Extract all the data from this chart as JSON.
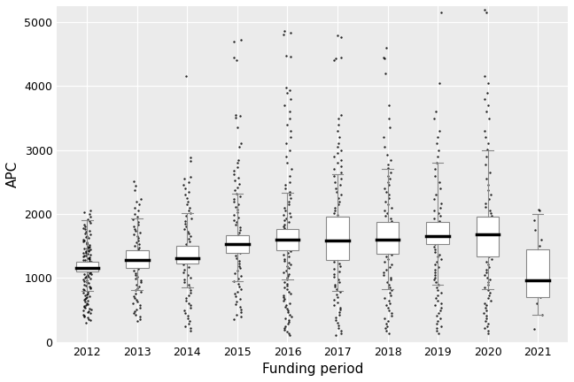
{
  "years": [
    2012,
    2013,
    2014,
    2015,
    2016,
    2017,
    2018,
    2019,
    2020,
    2021
  ],
  "box_stats": {
    "2012": {
      "q1": 1100,
      "median": 1150,
      "q3": 1260,
      "whislo": 800,
      "whishi": 1900
    },
    "2013": {
      "q1": 1155,
      "median": 1275,
      "q3": 1435,
      "whislo": 810,
      "whishi": 1930
    },
    "2014": {
      "q1": 1230,
      "median": 1305,
      "q3": 1505,
      "whislo": 850,
      "whishi": 2020
    },
    "2015": {
      "q1": 1385,
      "median": 1525,
      "q3": 1665,
      "whislo": 950,
      "whishi": 2320
    },
    "2016": {
      "q1": 1435,
      "median": 1600,
      "q3": 1770,
      "whislo": 970,
      "whishi": 2330
    },
    "2017": {
      "q1": 1275,
      "median": 1585,
      "q3": 1960,
      "whislo": 800,
      "whishi": 2620
    },
    "2018": {
      "q1": 1375,
      "median": 1595,
      "q3": 1875,
      "whislo": 820,
      "whishi": 2700
    },
    "2019": {
      "q1": 1535,
      "median": 1655,
      "q3": 1875,
      "whislo": 900,
      "whishi": 2800
    },
    "2020": {
      "q1": 1335,
      "median": 1685,
      "q3": 1955,
      "whislo": 830,
      "whishi": 3000
    },
    "2021": {
      "q1": 700,
      "median": 960,
      "q3": 1450,
      "whislo": 430,
      "whishi": 2000
    }
  },
  "scatter_data": {
    "2012": [
      300,
      340,
      360,
      380,
      400,
      415,
      430,
      445,
      460,
      475,
      490,
      505,
      520,
      535,
      550,
      565,
      580,
      595,
      610,
      625,
      640,
      655,
      670,
      685,
      700,
      715,
      730,
      745,
      760,
      775,
      790,
      810,
      825,
      840,
      855,
      870,
      885,
      900,
      915,
      930,
      945,
      960,
      975,
      990,
      1000,
      1015,
      1025,
      1035,
      1045,
      1055,
      1065,
      1075,
      1085,
      1095,
      1105,
      1115,
      1125,
      1135,
      1145,
      1155,
      1165,
      1175,
      1185,
      1195,
      1205,
      1215,
      1225,
      1235,
      1245,
      1255,
      1265,
      1275,
      1285,
      1295,
      1305,
      1315,
      1325,
      1335,
      1345,
      1355,
      1365,
      1375,
      1385,
      1395,
      1405,
      1415,
      1425,
      1435,
      1445,
      1455,
      1465,
      1475,
      1485,
      1495,
      1510,
      1525,
      1540,
      1555,
      1570,
      1585,
      1600,
      1620,
      1640,
      1660,
      1680,
      1700,
      1720,
      1740,
      1760,
      1780,
      1800,
      1830,
      1860,
      1890,
      1920,
      1960,
      2000,
      2030,
      2060
    ],
    "2013": [
      330,
      360,
      390,
      420,
      450,
      480,
      510,
      540,
      570,
      600,
      630,
      660,
      690,
      720,
      750,
      780,
      810,
      840,
      870,
      900,
      930,
      960,
      990,
      1020,
      1050,
      1080,
      1110,
      1140,
      1170,
      1200,
      1230,
      1260,
      1290,
      1320,
      1350,
      1380,
      1410,
      1440,
      1470,
      1500,
      1530,
      1560,
      1590,
      1620,
      1650,
      1680,
      1710,
      1740,
      1770,
      1800,
      1840,
      1880,
      1920,
      1960,
      2000,
      2060,
      2100,
      2150,
      2200,
      2240,
      2380,
      2440,
      2510
    ],
    "2014": [
      170,
      210,
      250,
      290,
      330,
      370,
      410,
      450,
      490,
      530,
      570,
      610,
      650,
      690,
      730,
      770,
      810,
      850,
      890,
      930,
      970,
      1010,
      1050,
      1090,
      1130,
      1170,
      1210,
      1250,
      1290,
      1330,
      1370,
      1410,
      1450,
      1490,
      1530,
      1570,
      1610,
      1650,
      1690,
      1730,
      1770,
      1810,
      1850,
      1890,
      1930,
      1970,
      2010,
      2050,
      2100,
      2150,
      2200,
      2250,
      2300,
      2350,
      2400,
      2450,
      2500,
      2550,
      2580,
      2830,
      2880,
      4150
    ],
    "2015": [
      350,
      390,
      430,
      470,
      510,
      550,
      590,
      630,
      670,
      710,
      750,
      790,
      830,
      870,
      910,
      950,
      990,
      1030,
      1070,
      1110,
      1150,
      1190,
      1230,
      1270,
      1310,
      1350,
      1390,
      1430,
      1470,
      1510,
      1550,
      1590,
      1630,
      1670,
      1710,
      1750,
      1790,
      1830,
      1870,
      1910,
      1950,
      1990,
      2030,
      2070,
      2110,
      2150,
      2190,
      2230,
      2270,
      2320,
      2370,
      2420,
      2470,
      2520,
      2570,
      2620,
      2680,
      2730,
      2800,
      2850,
      3050,
      3100,
      3350,
      3510,
      3530,
      3550,
      4400,
      4450,
      4700,
      4720
    ],
    "2016": [
      100,
      130,
      160,
      190,
      220,
      250,
      280,
      310,
      340,
      370,
      400,
      430,
      460,
      490,
      520,
      550,
      580,
      610,
      640,
      670,
      700,
      730,
      760,
      790,
      820,
      850,
      880,
      910,
      940,
      970,
      1000,
      1030,
      1060,
      1090,
      1120,
      1150,
      1180,
      1210,
      1240,
      1270,
      1300,
      1330,
      1360,
      1390,
      1420,
      1450,
      1480,
      1510,
      1540,
      1570,
      1600,
      1630,
      1660,
      1690,
      1720,
      1750,
      1780,
      1810,
      1840,
      1870,
      1900,
      1930,
      1960,
      1990,
      2020,
      2060,
      2100,
      2150,
      2200,
      2250,
      2300,
      2350,
      2400,
      2450,
      2500,
      2600,
      2700,
      2800,
      2900,
      3000,
      3100,
      3200,
      3300,
      3400,
      3500,
      3600,
      3700,
      3800,
      3900,
      3940,
      3980,
      4460,
      4480,
      4800,
      4830,
      4860
    ],
    "2017": [
      100,
      140,
      180,
      220,
      260,
      300,
      340,
      380,
      420,
      460,
      500,
      540,
      580,
      620,
      660,
      700,
      740,
      780,
      820,
      860,
      900,
      940,
      980,
      1020,
      1060,
      1100,
      1140,
      1180,
      1220,
      1260,
      1300,
      1340,
      1380,
      1420,
      1460,
      1500,
      1540,
      1580,
      1620,
      1660,
      1700,
      1740,
      1780,
      1820,
      1860,
      1900,
      1940,
      1980,
      2020,
      2060,
      2100,
      2150,
      2200,
      2250,
      2300,
      2350,
      2400,
      2450,
      2500,
      2550,
      2600,
      2650,
      2700,
      2750,
      2800,
      2850,
      2900,
      2950,
      3000,
      3050,
      3100,
      3200,
      3300,
      3400,
      3500,
      3550,
      4400,
      4430,
      4450,
      4760,
      4790
    ],
    "2018": [
      130,
      170,
      210,
      250,
      290,
      330,
      370,
      410,
      450,
      490,
      530,
      570,
      610,
      650,
      690,
      730,
      770,
      810,
      850,
      890,
      930,
      970,
      1010,
      1050,
      1090,
      1130,
      1170,
      1210,
      1250,
      1290,
      1330,
      1370,
      1410,
      1450,
      1490,
      1530,
      1570,
      1610,
      1650,
      1690,
      1730,
      1770,
      1810,
      1850,
      1890,
      1930,
      1970,
      2010,
      2060,
      2100,
      2150,
      2200,
      2250,
      2300,
      2350,
      2400,
      2450,
      2500,
      2550,
      2600,
      2650,
      2720,
      2780,
      2850,
      2920,
      3050,
      3200,
      3350,
      3500,
      3700,
      4200,
      4430,
      4450,
      4600
    ],
    "2019": [
      130,
      170,
      210,
      250,
      290,
      330,
      370,
      410,
      450,
      490,
      530,
      570,
      610,
      650,
      690,
      730,
      770,
      810,
      850,
      890,
      930,
      970,
      1010,
      1050,
      1090,
      1130,
      1170,
      1210,
      1250,
      1290,
      1330,
      1370,
      1410,
      1450,
      1490,
      1530,
      1570,
      1610,
      1650,
      1690,
      1730,
      1770,
      1810,
      1850,
      1890,
      1930,
      1970,
      2010,
      2050,
      2100,
      2160,
      2230,
      2300,
      2400,
      2500,
      2600,
      2700,
      2800,
      2900,
      3000,
      3100,
      3200,
      3300,
      3500,
      3600,
      4050,
      5150
    ],
    "2020": [
      130,
      170,
      210,
      250,
      290,
      330,
      370,
      410,
      450,
      490,
      530,
      570,
      610,
      650,
      690,
      730,
      770,
      810,
      850,
      890,
      930,
      970,
      1010,
      1050,
      1090,
      1130,
      1170,
      1210,
      1250,
      1290,
      1330,
      1370,
      1410,
      1450,
      1490,
      1530,
      1570,
      1610,
      1650,
      1690,
      1730,
      1770,
      1810,
      1850,
      1890,
      1930,
      1970,
      2010,
      2060,
      2110,
      2170,
      2230,
      2300,
      2380,
      2460,
      2550,
      2650,
      2780,
      2900,
      3010,
      3100,
      3200,
      3300,
      3500,
      3600,
      3700,
      3800,
      3900,
      4050,
      4150,
      5150,
      5200
    ],
    "2021": [
      200,
      430,
      600,
      700,
      760,
      820,
      870,
      920,
      960,
      1000,
      1050,
      1120,
      1200,
      1300,
      1400,
      1500,
      1600,
      1750,
      1900,
      2050,
      2070
    ]
  },
  "xlabel": "Funding period",
  "ylabel": "APC",
  "ylim": [
    0,
    5250
  ],
  "yticks": [
    0,
    1000,
    2000,
    3000,
    4000,
    5000
  ],
  "bg_panel": "#ebebeb",
  "bg_figure": "#ffffff",
  "grid_color": "#ffffff",
  "box_edge_color": "#888888",
  "median_color": "#000000",
  "whisker_color": "#888888",
  "flier_color": "#000000",
  "label_fontsize": 11,
  "tick_fontsize": 9
}
